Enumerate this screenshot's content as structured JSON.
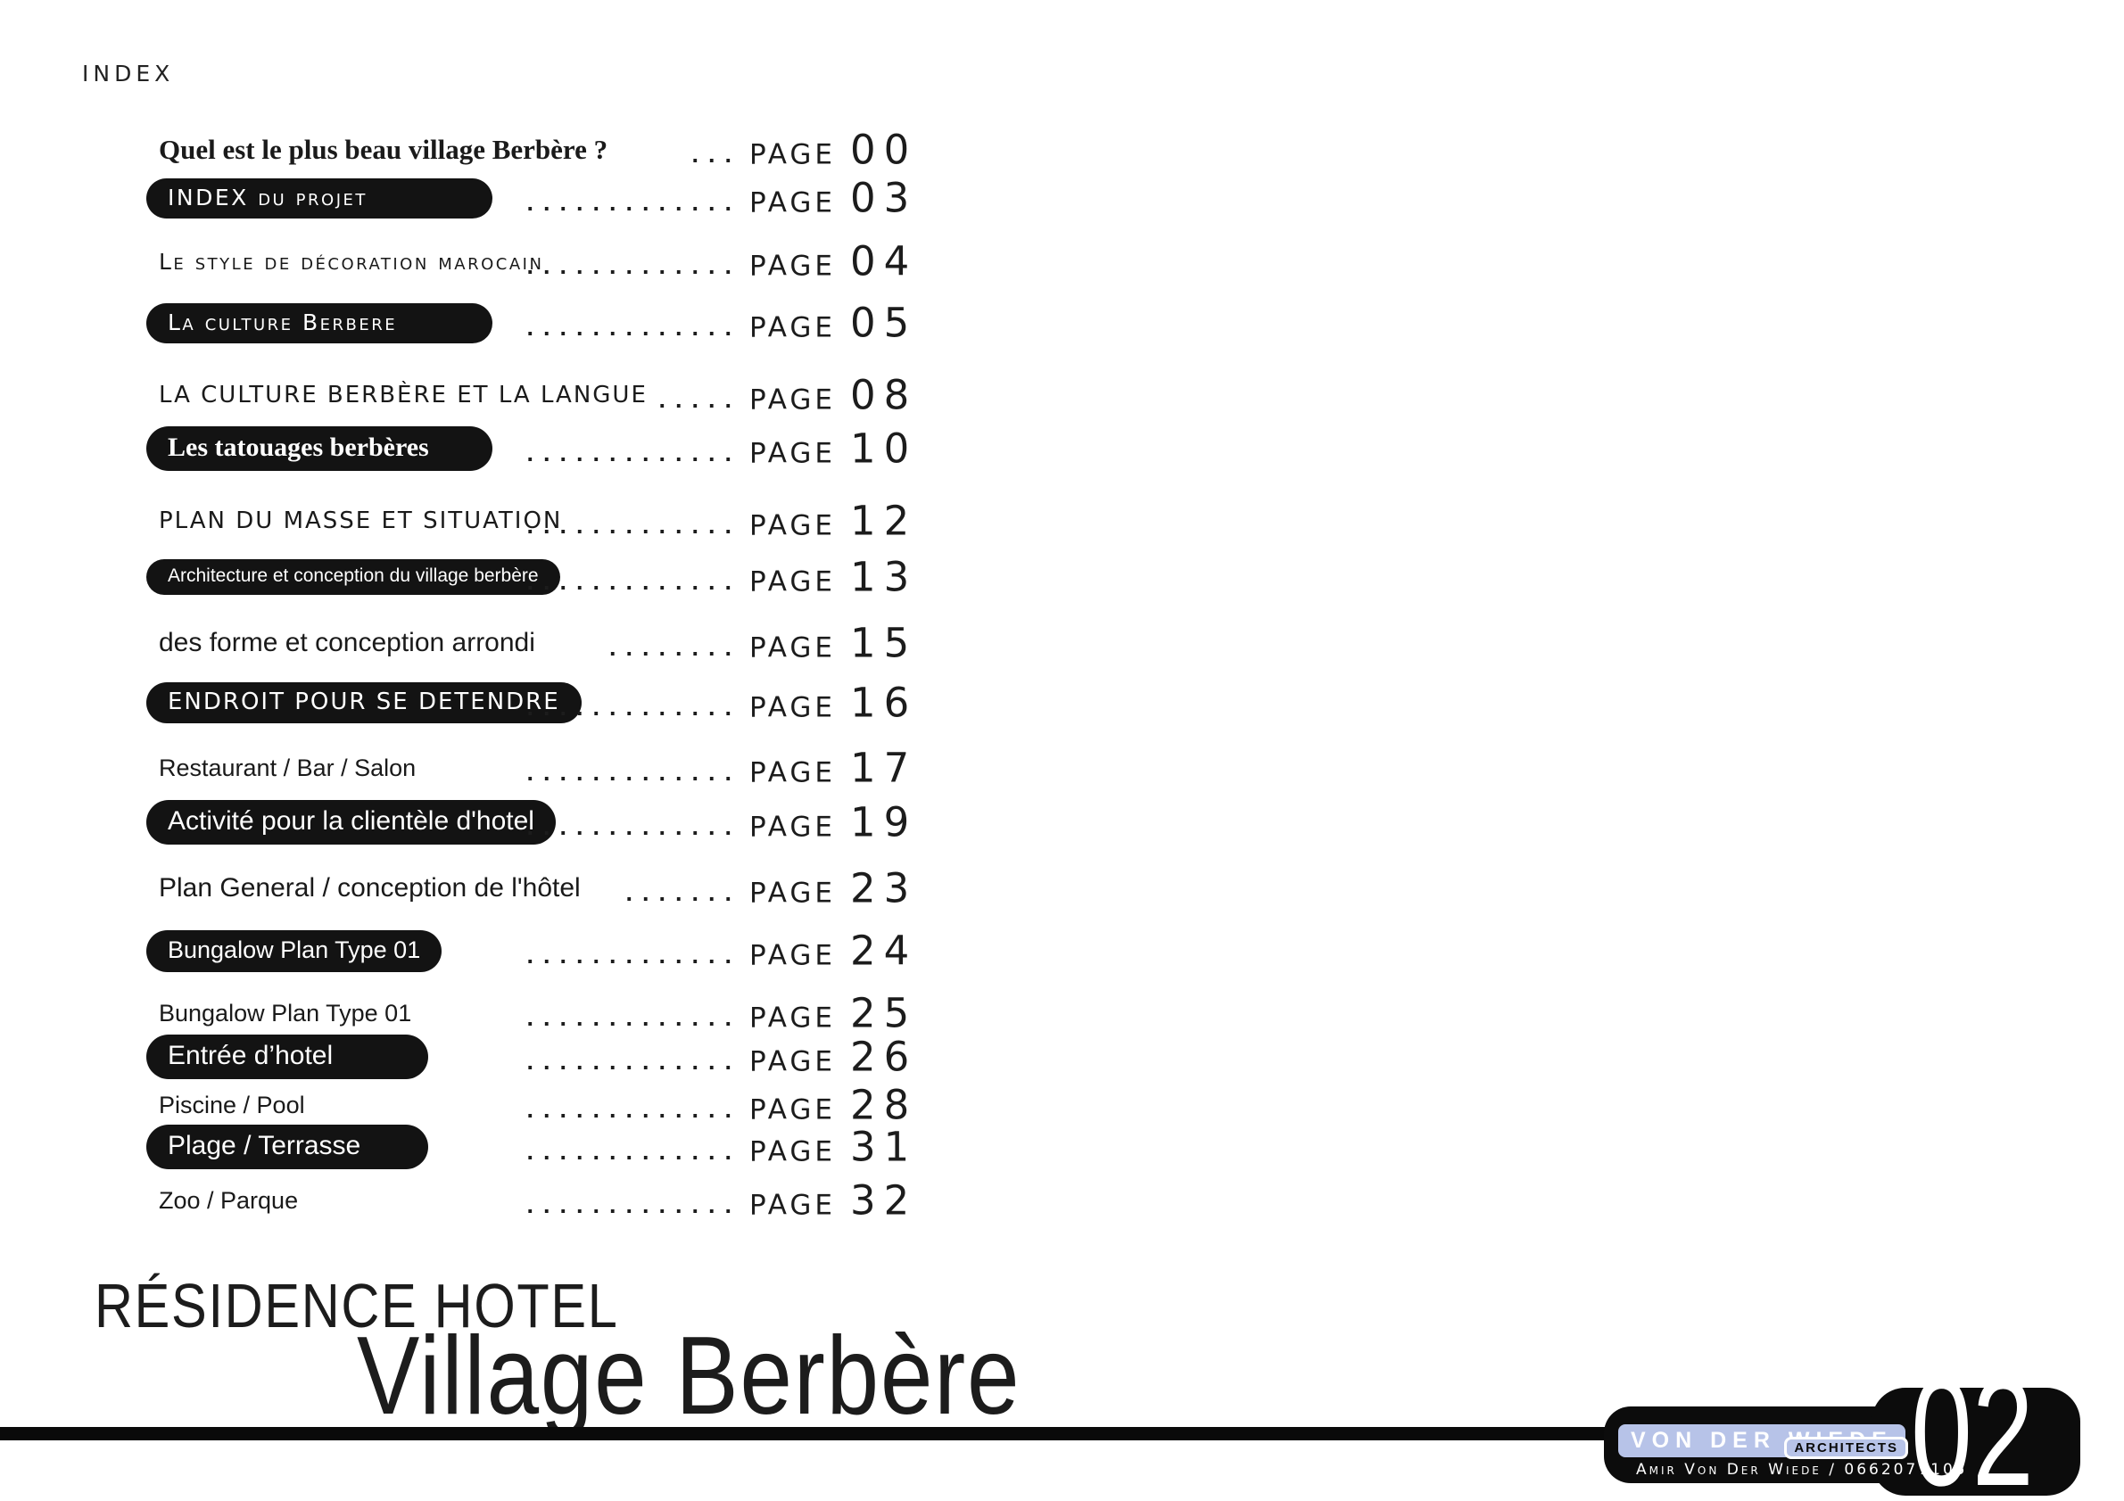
{
  "meta": {
    "index_label": "INDEX",
    "page_word": "PAGE"
  },
  "toc": [
    {
      "label": "Quel est le plus beau village Berbère ?",
      "page": "00",
      "dots": "...",
      "variant": "f-serif"
    },
    {
      "label": "INDEX du projet",
      "page": "03",
      "dots": ".............",
      "variant": "pill f-techsc lg"
    },
    {
      "label": "Le style de décoration marocain",
      "page": "04",
      "dots": ".............",
      "variant": "f-techsc"
    },
    {
      "label": "La culture Berbere",
      "page": "05",
      "dots": ".............",
      "variant": "pill f-techsc lg"
    },
    {
      "label": "LA CULTURE BERBÈRE ET LA LANGUE",
      "page": "08",
      "dots": ".....",
      "variant": "f-techcaps"
    },
    {
      "label": "Les tatouages berbères",
      "page": "10",
      "dots": ".............",
      "variant": "pill f-serifpill lg"
    },
    {
      "label": "PLAN DU MASSE ET SITUATION",
      "page": "12",
      "dots": ".............",
      "variant": "f-techcaps"
    },
    {
      "label": "Architecture et conception du village berbère",
      "page": "13",
      "dots": ".............",
      "variant": "pill f-sanssm lg"
    },
    {
      "label": "des forme et conception arrondi",
      "page": "15",
      "dots": "........",
      "variant": "f-sanslg"
    },
    {
      "label": "ENDROIT POUR SE DETENDRE",
      "page": "16",
      "dots": ".............",
      "variant": "pill f-techcaps"
    },
    {
      "label": "Restaurant / Bar / Salon",
      "page": "17",
      "dots": ".............",
      "variant": "f-sans"
    },
    {
      "label": "Activité pour la clientèle d'hotel",
      "page": "19",
      "dots": ".............",
      "variant": "pill f-sanslg"
    },
    {
      "label": "Plan General / conception de l'hôtel",
      "page": "23",
      "dots": ".......",
      "variant": "f-sanslg"
    },
    {
      "label": "Bungalow Plan Type 01",
      "page": "24",
      "dots": ".............",
      "variant": "pill f-sans md"
    },
    {
      "label": "Bungalow Plan Type 01",
      "page": "25",
      "dots": ".............",
      "variant": "f-sans"
    },
    {
      "label": "Entrée d’hotel",
      "page": "26",
      "dots": ".............",
      "variant": "pill f-sanslg md"
    },
    {
      "label": "Piscine / Pool",
      "page": "28",
      "dots": ".............",
      "variant": "f-sans"
    },
    {
      "label": "Plage / Terrasse",
      "page": "31",
      "dots": ".............",
      "variant": "pill f-sanslg md"
    },
    {
      "label": "Zoo / Parque",
      "page": "32",
      "dots": ".............",
      "variant": "f-sans"
    }
  ],
  "footer": {
    "title_line1": "RÉSIDENCE HOTEL",
    "title_line2": "Village Berbère"
  },
  "badge": {
    "firm": "VON DER WIEDE",
    "firm_suffix": "ARCHITECTS",
    "contact": "Amir Von Der Wiede / 0662077105",
    "sheet_number": "02"
  },
  "colors": {
    "ink": "#1a1a1a",
    "pill_bg": "#131313",
    "badge_bg": "#0c0c0c",
    "logo_bar": "#b7c3e8"
  }
}
